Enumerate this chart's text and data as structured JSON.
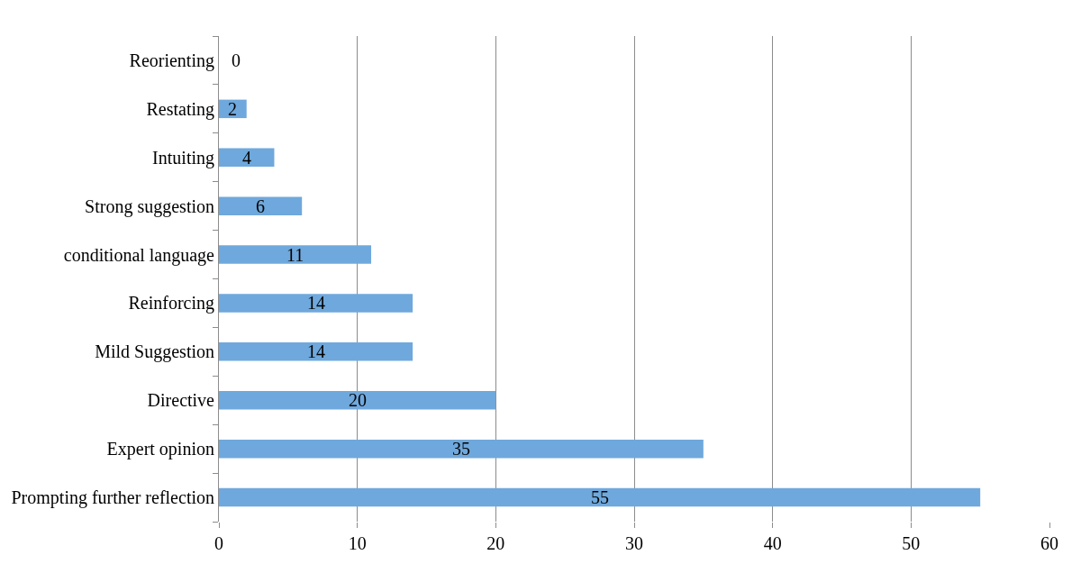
{
  "chart_data": {
    "type": "bar",
    "orientation": "horizontal",
    "categories": [
      "Reorienting",
      "Restating",
      "Intuiting",
      "Strong suggestion",
      "conditional language",
      "Reinforcing",
      "Mild Suggestion",
      "Directive",
      "Expert opinion",
      "Prompting further reflection"
    ],
    "values": [
      0,
      2,
      4,
      6,
      11,
      14,
      14,
      20,
      35,
      55
    ],
    "color": "#6fa8dc",
    "xlim": [
      0,
      60
    ],
    "xticks": [
      0,
      10,
      20,
      30,
      40,
      50,
      60
    ],
    "grid": "x",
    "data_labels": true,
    "legend": false
  }
}
